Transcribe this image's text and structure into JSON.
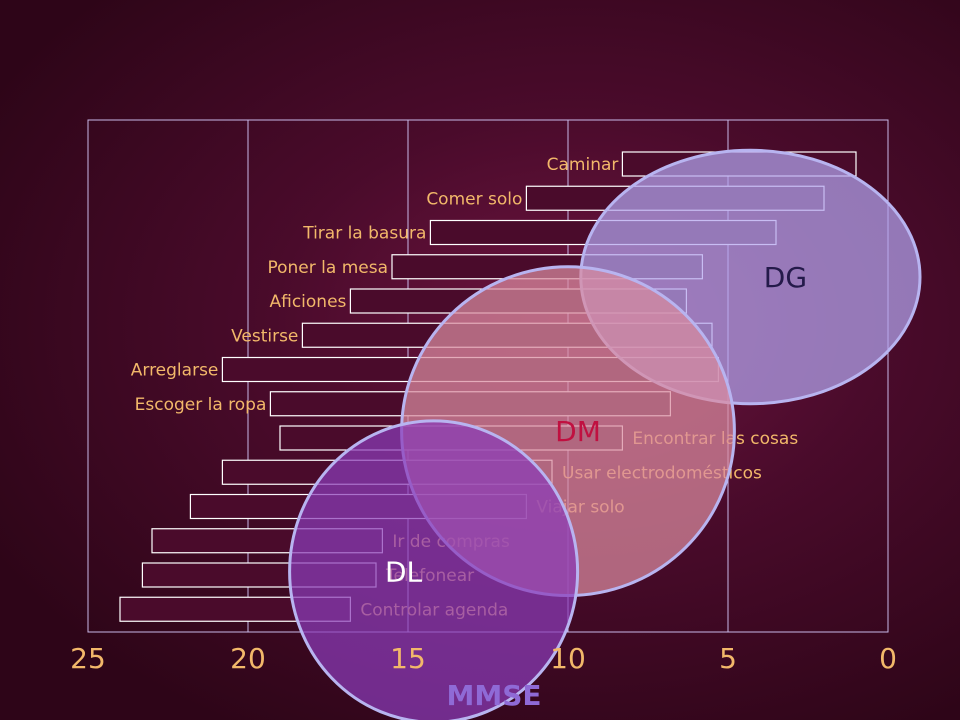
{
  "chart_data": {
    "type": "bar",
    "orientation": "horizontal",
    "title": "",
    "xlabel": "MMSE",
    "ylabel": "",
    "xlim": [
      25,
      0
    ],
    "x_axis_reversed": true,
    "x_ticks": [
      25,
      20,
      15,
      10,
      5,
      0
    ],
    "grid": "vertical",
    "bars": [
      {
        "label": "Caminar",
        "from": 8.3,
        "to": 1.0
      },
      {
        "label": "Comer solo",
        "from": 11.3,
        "to": 2.0
      },
      {
        "label": "Tirar la basura",
        "from": 14.3,
        "to": 3.5
      },
      {
        "label": "Poner la mesa",
        "from": 15.5,
        "to": 5.8
      },
      {
        "label": "Aficiones",
        "from": 16.8,
        "to": 6.3
      },
      {
        "label": "Vestirse",
        "from": 18.3,
        "to": 5.5
      },
      {
        "label": "Arreglarse",
        "from": 20.8,
        "to": 5.3
      },
      {
        "label": "Escoger la ropa",
        "from": 19.3,
        "to": 6.8
      },
      {
        "label": "Encontrar las cosas",
        "from": 19.0,
        "to": 8.3
      },
      {
        "label": "Usar electrodomésticos",
        "from": 20.8,
        "to": 10.5
      },
      {
        "label": "Viajar solo",
        "from": 21.8,
        "to": 11.3
      },
      {
        "label": "Ir de compras",
        "from": 23.0,
        "to": 15.8
      },
      {
        "label": "Telefonear",
        "from": 23.3,
        "to": 16.0
      },
      {
        "label": "Controlar agenda",
        "from": 24.0,
        "to": 16.8
      }
    ],
    "zones": [
      {
        "label": "DG",
        "x_center": 4.3,
        "x_halfwidth": 5.3,
        "bar_center": 3.3,
        "bar_halfspan": 3.7,
        "fill": "#b3a3ee",
        "label_color": "#241a4a"
      },
      {
        "label": "DM",
        "x_center": 10.0,
        "x_halfwidth": 5.2,
        "bar_center": 7.8,
        "bar_halfspan": 4.8,
        "fill": "#d98aa0",
        "label_color": "#c01040"
      },
      {
        "label": "DL",
        "x_center": 14.2,
        "x_halfwidth": 4.5,
        "bar_center": 11.9,
        "bar_halfspan": 4.4,
        "fill": "#8a3bb8",
        "label_color": "#ffffff"
      }
    ],
    "colors": {
      "bar_fill": "#4a0b2b",
      "bar_stroke": "#ffffff",
      "grid": "#c8b8e8",
      "label": "#f2b86a",
      "axis_title": "#8f6ad6",
      "zone_stroke": "#b8b4f0"
    }
  }
}
